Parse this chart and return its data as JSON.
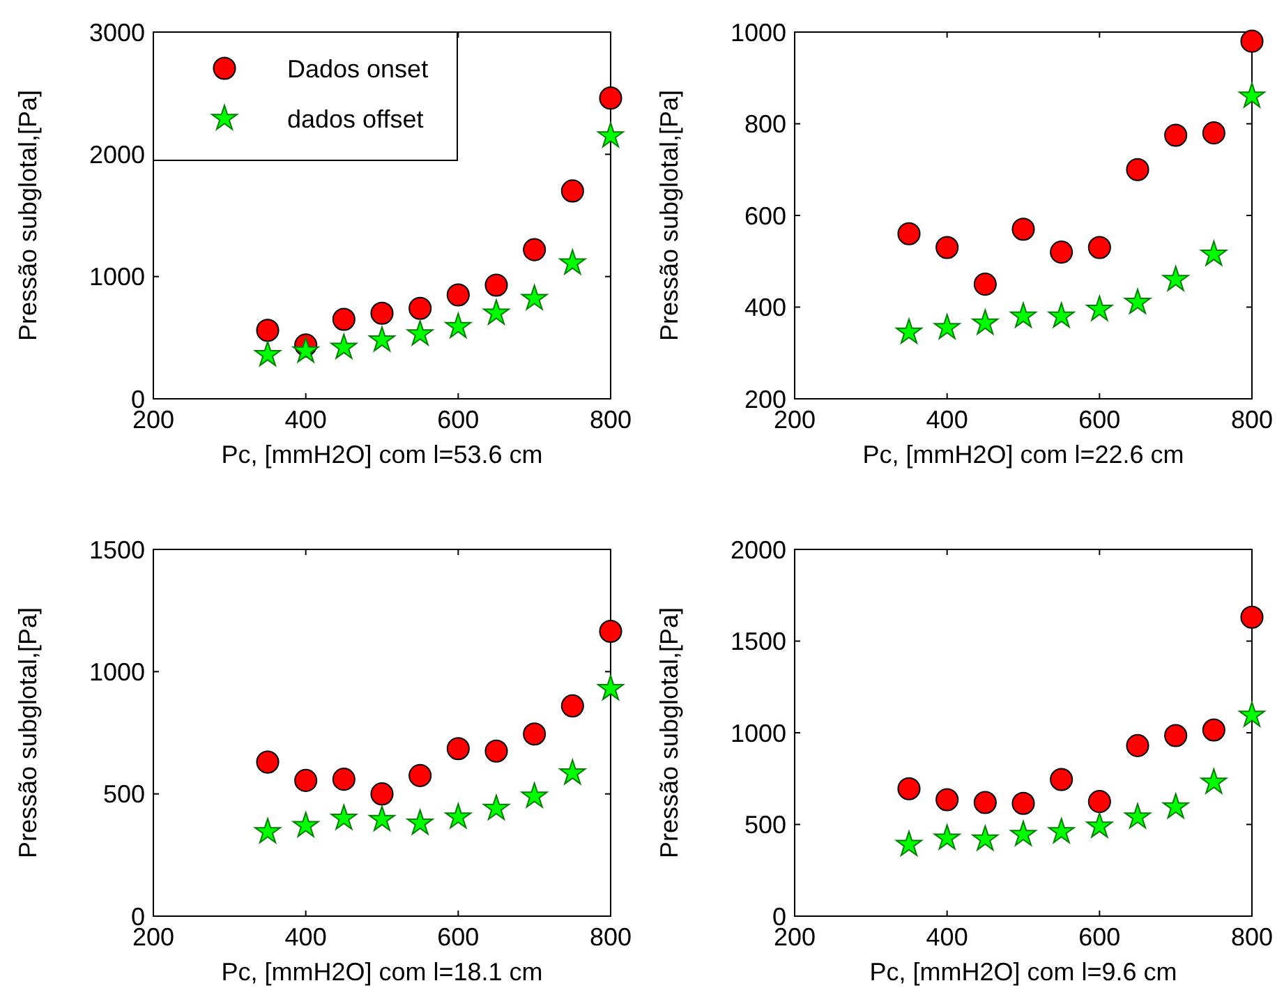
{
  "chart_data": [
    {
      "type": "scatter",
      "xlabel": "Pc, [mmH2O] com l=53.6 cm",
      "ylabel": "Pressão subglotal,[Pa]",
      "xlim": [
        200,
        800
      ],
      "xticks": [
        200,
        400,
        600,
        800
      ],
      "ylim": [
        0,
        3000
      ],
      "yticks": [
        0,
        1000,
        2000,
        3000
      ],
      "legend": "top left",
      "x": [
        350,
        400,
        450,
        500,
        550,
        600,
        650,
        700,
        750,
        800
      ],
      "series": [
        {
          "name": "Dados onset",
          "color": "#ff0000",
          "marker": "circle",
          "values": [
            560,
            440,
            650,
            700,
            740,
            850,
            930,
            1220,
            1700,
            2460
          ]
        },
        {
          "name": "dados offset",
          "color": "#00ff00",
          "marker": "star",
          "values": [
            360,
            390,
            420,
            480,
            530,
            590,
            700,
            820,
            1110,
            2150
          ]
        }
      ]
    },
    {
      "type": "scatter",
      "xlabel": "Pc, [mmH2O] com l=22.6 cm",
      "ylabel": "Pressão subglotal,[Pa]",
      "xlim": [
        200,
        800
      ],
      "xticks": [
        200,
        400,
        600,
        800
      ],
      "ylim": [
        200,
        1000
      ],
      "yticks": [
        200,
        400,
        600,
        800,
        1000
      ],
      "x": [
        350,
        400,
        450,
        500,
        550,
        600,
        650,
        700,
        750,
        800
      ],
      "series": [
        {
          "color": "#ff0000",
          "marker": "circle",
          "values": [
            560,
            530,
            450,
            570,
            520,
            530,
            700,
            775,
            780,
            980
          ]
        },
        {
          "color": "#00ff00",
          "marker": "star",
          "values": [
            345,
            355,
            365,
            380,
            380,
            395,
            410,
            460,
            515,
            860
          ]
        }
      ]
    },
    {
      "type": "scatter",
      "xlabel": "Pc, [mmH2O] com l=18.1 cm",
      "ylabel": "Pressão subglotal,[Pa]",
      "xlim": [
        200,
        800
      ],
      "xticks": [
        200,
        400,
        600,
        800
      ],
      "ylim": [
        0,
        1500
      ],
      "yticks": [
        0,
        500,
        1000,
        1500
      ],
      "x": [
        350,
        400,
        450,
        500,
        550,
        600,
        650,
        700,
        750,
        800
      ],
      "series": [
        {
          "color": "#ff0000",
          "marker": "circle",
          "values": [
            630,
            555,
            560,
            500,
            575,
            685,
            675,
            745,
            860,
            1165
          ]
        },
        {
          "color": "#00ff00",
          "marker": "star",
          "values": [
            345,
            370,
            400,
            395,
            380,
            405,
            440,
            490,
            585,
            930
          ]
        }
      ]
    },
    {
      "type": "scatter",
      "xlabel": "Pc, [mmH2O] com l=9.6 cm",
      "ylabel": "Pressão subglotal,[Pa]",
      "xlim": [
        200,
        800
      ],
      "xticks": [
        200,
        400,
        600,
        800
      ],
      "ylim": [
        0,
        2000
      ],
      "yticks": [
        0,
        500,
        1000,
        1500,
        2000
      ],
      "x": [
        350,
        400,
        450,
        500,
        550,
        600,
        650,
        700,
        750,
        800
      ],
      "series": [
        {
          "color": "#ff0000",
          "marker": "circle",
          "values": [
            695,
            635,
            620,
            615,
            745,
            625,
            930,
            985,
            1015,
            1630
          ]
        },
        {
          "color": "#00ff00",
          "marker": "star",
          "values": [
            390,
            425,
            420,
            445,
            460,
            490,
            540,
            595,
            730,
            1095
          ]
        }
      ]
    }
  ]
}
